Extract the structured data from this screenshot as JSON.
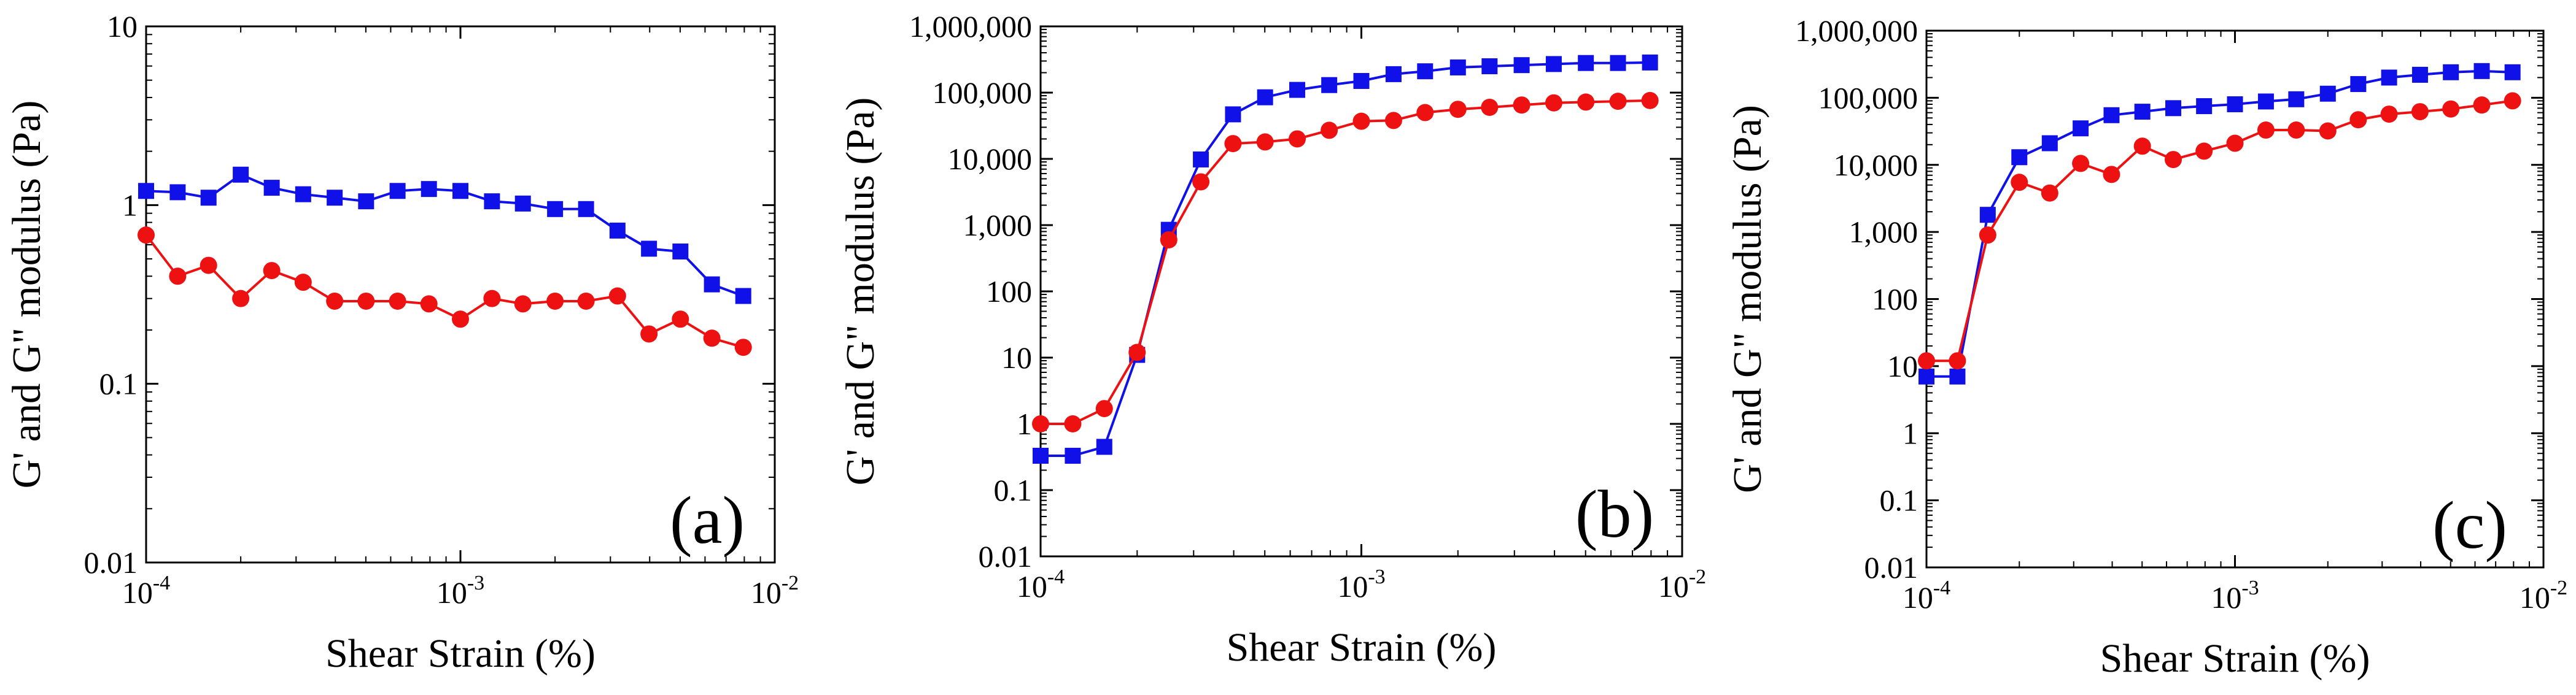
{
  "chart_data": [
    {
      "type": "line",
      "panel_label": "(a)",
      "xlabel": "Shear Strain (%)",
      "ylabel": "G' and G\" modulus (Pa)",
      "x_scale": "log",
      "y_scale": "log",
      "xlim": [
        0.0001,
        0.01
      ],
      "ylim": [
        0.01,
        10
      ],
      "x_ticks": [
        {
          "value": 0.0001,
          "base": "10",
          "exp": "-4"
        },
        {
          "value": 0.001,
          "base": "10",
          "exp": "-3"
        },
        {
          "value": 0.01,
          "base": "10",
          "exp": "-2"
        }
      ],
      "y_ticks": [
        {
          "value": 0.01,
          "label": "0.01"
        },
        {
          "value": 0.1,
          "label": "0.1"
        },
        {
          "value": 1,
          "label": "1"
        },
        {
          "value": 10,
          "label": "10"
        }
      ],
      "legend": "none",
      "grid": false,
      "series": [
        {
          "marker": "square",
          "color": "#1010e8",
          "points": [
            [
              0.0001,
              1.2
            ],
            [
              0.000126,
              1.18
            ],
            [
              0.000158,
              1.1
            ],
            [
              0.0002,
              1.48
            ],
            [
              0.000251,
              1.25
            ],
            [
              0.000316,
              1.15
            ],
            [
              0.000398,
              1.1
            ],
            [
              0.000501,
              1.05
            ],
            [
              0.000631,
              1.2
            ],
            [
              0.000794,
              1.23
            ],
            [
              0.001,
              1.2
            ],
            [
              0.00126,
              1.05
            ],
            [
              0.00158,
              1.02
            ],
            [
              0.002,
              0.95
            ],
            [
              0.00251,
              0.95
            ],
            [
              0.00316,
              0.72
            ],
            [
              0.00398,
              0.57
            ],
            [
              0.00501,
              0.55
            ],
            [
              0.00631,
              0.36
            ],
            [
              0.00794,
              0.31
            ]
          ]
        },
        {
          "marker": "circle",
          "color": "#ee1111",
          "points": [
            [
              0.0001,
              0.68
            ],
            [
              0.000126,
              0.4
            ],
            [
              0.000158,
              0.46
            ],
            [
              0.0002,
              0.3
            ],
            [
              0.000251,
              0.43
            ],
            [
              0.000316,
              0.37
            ],
            [
              0.000398,
              0.29
            ],
            [
              0.000501,
              0.29
            ],
            [
              0.000631,
              0.29
            ],
            [
              0.000794,
              0.28
            ],
            [
              0.001,
              0.23
            ],
            [
              0.00126,
              0.3
            ],
            [
              0.00158,
              0.28
            ],
            [
              0.002,
              0.29
            ],
            [
              0.00251,
              0.29
            ],
            [
              0.00316,
              0.31
            ],
            [
              0.00398,
              0.19
            ],
            [
              0.00501,
              0.23
            ],
            [
              0.00631,
              0.18
            ],
            [
              0.00794,
              0.16
            ]
          ]
        }
      ]
    },
    {
      "type": "line",
      "panel_label": "(b)",
      "xlabel": "Shear Strain (%)",
      "ylabel": "G' and G\" modulus (Pa)",
      "x_scale": "log",
      "y_scale": "log",
      "xlim": [
        0.0001,
        0.01
      ],
      "ylim": [
        0.01,
        1000000
      ],
      "x_ticks": [
        {
          "value": 0.0001,
          "base": "10",
          "exp": "-4"
        },
        {
          "value": 0.001,
          "base": "10",
          "exp": "-3"
        },
        {
          "value": 0.01,
          "base": "10",
          "exp": "-2"
        }
      ],
      "y_ticks": [
        {
          "value": 0.01,
          "label": "0.01"
        },
        {
          "value": 0.1,
          "label": "0.1"
        },
        {
          "value": 1,
          "label": "1"
        },
        {
          "value": 10,
          "label": "10"
        },
        {
          "value": 100,
          "label": "100"
        },
        {
          "value": 1000,
          "label": "1,000"
        },
        {
          "value": 10000,
          "label": "10,000"
        },
        {
          "value": 100000,
          "label": "100,000"
        },
        {
          "value": 1000000,
          "label": "1,000,000"
        }
      ],
      "legend": "none",
      "grid": false,
      "series": [
        {
          "marker": "square",
          "color": "#1010e8",
          "points": [
            [
              0.0001,
              0.33
            ],
            [
              0.000126,
              0.33
            ],
            [
              0.000158,
              0.45
            ],
            [
              0.0002,
              11
            ],
            [
              0.000251,
              850
            ],
            [
              0.000316,
              9800
            ],
            [
              0.000398,
              47000
            ],
            [
              0.000501,
              85000
            ],
            [
              0.000631,
              110000
            ],
            [
              0.000794,
              130000
            ],
            [
              0.001,
              150000
            ],
            [
              0.00126,
              190000
            ],
            [
              0.00158,
              210000
            ],
            [
              0.002,
              240000
            ],
            [
              0.00251,
              250000
            ],
            [
              0.00316,
              260000
            ],
            [
              0.00398,
              270000
            ],
            [
              0.00501,
              280000
            ],
            [
              0.00631,
              280000
            ],
            [
              0.00794,
              285000
            ]
          ]
        },
        {
          "marker": "circle",
          "color": "#ee1111",
          "points": [
            [
              0.0001,
              1.0
            ],
            [
              0.000126,
              1.0
            ],
            [
              0.000158,
              1.7
            ],
            [
              0.0002,
              12
            ],
            [
              0.000251,
              600
            ],
            [
              0.000316,
              4500
            ],
            [
              0.000398,
              17000
            ],
            [
              0.000501,
              18000
            ],
            [
              0.000631,
              20000
            ],
            [
              0.000794,
              27000
            ],
            [
              0.001,
              37000
            ],
            [
              0.00126,
              38000
            ],
            [
              0.00158,
              50000
            ],
            [
              0.002,
              56000
            ],
            [
              0.00251,
              60000
            ],
            [
              0.00316,
              65000
            ],
            [
              0.00398,
              70000
            ],
            [
              0.00501,
              72000
            ],
            [
              0.00631,
              74000
            ],
            [
              0.00794,
              76000
            ]
          ]
        }
      ]
    },
    {
      "type": "line",
      "panel_label": "(c)",
      "xlabel": "Shear Strain (%)",
      "ylabel": "G' and G\" modulus (Pa)",
      "x_scale": "log",
      "y_scale": "log",
      "xlim": [
        0.0001,
        0.01
      ],
      "ylim": [
        0.01,
        1000000
      ],
      "x_ticks": [
        {
          "value": 0.0001,
          "base": "10",
          "exp": "-4"
        },
        {
          "value": 0.001,
          "base": "10",
          "exp": "-3"
        },
        {
          "value": 0.01,
          "base": "10",
          "exp": "-2"
        }
      ],
      "y_ticks": [
        {
          "value": 0.01,
          "label": "0.01"
        },
        {
          "value": 0.1,
          "label": "0.1"
        },
        {
          "value": 1,
          "label": "1"
        },
        {
          "value": 10,
          "label": "10"
        },
        {
          "value": 100,
          "label": "100"
        },
        {
          "value": 1000,
          "label": "1,000"
        },
        {
          "value": 10000,
          "label": "10,000"
        },
        {
          "value": 100000,
          "label": "100,000"
        },
        {
          "value": 1000000,
          "label": "1,000,000"
        }
      ],
      "legend": "none",
      "grid": false,
      "series": [
        {
          "marker": "square",
          "color": "#1010e8",
          "points": [
            [
              0.0001,
              7
            ],
            [
              0.000126,
              7
            ],
            [
              0.000158,
              1800
            ],
            [
              0.0002,
              13000
            ],
            [
              0.000251,
              21000
            ],
            [
              0.000316,
              35000
            ],
            [
              0.000398,
              55000
            ],
            [
              0.000501,
              62000
            ],
            [
              0.000631,
              70000
            ],
            [
              0.000794,
              75000
            ],
            [
              0.001,
              80000
            ],
            [
              0.00126,
              88000
            ],
            [
              0.00158,
              95000
            ],
            [
              0.002,
              115000
            ],
            [
              0.00251,
              160000
            ],
            [
              0.00316,
              200000
            ],
            [
              0.00398,
              220000
            ],
            [
              0.00501,
              240000
            ],
            [
              0.00631,
              250000
            ],
            [
              0.00794,
              240000
            ]
          ]
        },
        {
          "marker": "circle",
          "color": "#ee1111",
          "points": [
            [
              0.0001,
              12
            ],
            [
              0.000126,
              12
            ],
            [
              0.000158,
              900
            ],
            [
              0.0002,
              5500
            ],
            [
              0.000251,
              3800
            ],
            [
              0.000316,
              10500
            ],
            [
              0.000398,
              7200
            ],
            [
              0.000501,
              19000
            ],
            [
              0.000631,
              12000
            ],
            [
              0.000794,
              16000
            ],
            [
              0.001,
              21000
            ],
            [
              0.00126,
              33000
            ],
            [
              0.00158,
              33000
            ],
            [
              0.002,
              32000
            ],
            [
              0.00251,
              47000
            ],
            [
              0.00316,
              57000
            ],
            [
              0.00398,
              62000
            ],
            [
              0.00501,
              68000
            ],
            [
              0.00631,
              78000
            ],
            [
              0.00794,
              90000
            ]
          ]
        }
      ]
    }
  ]
}
